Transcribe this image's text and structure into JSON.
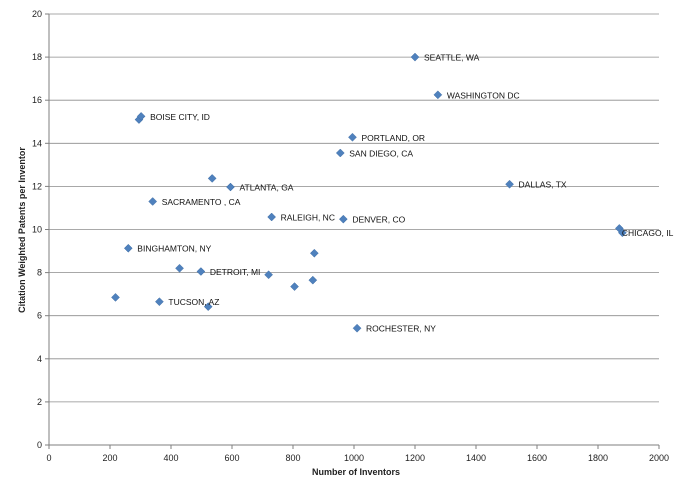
{
  "chart_data": {
    "type": "scatter",
    "title": "",
    "xlabel": "Number of Inventors",
    "ylabel": "Citation Weighted Patents per Inventor",
    "xlim": [
      0,
      2000
    ],
    "ylim": [
      0,
      20
    ],
    "xticks": [
      0,
      200,
      400,
      600,
      800,
      1000,
      1200,
      1400,
      1600,
      1800,
      2000
    ],
    "yticks": [
      0,
      2,
      4,
      6,
      8,
      10,
      12,
      14,
      16,
      18,
      20
    ],
    "grid": "horizontal",
    "legend": "none",
    "marker_color": "#4f81bd",
    "points": [
      {
        "x": 1200,
        "y": 18.0,
        "label": "SEATTLE, WA"
      },
      {
        "x": 1275,
        "y": 16.25,
        "label": "WASHINGTON  DC"
      },
      {
        "x": 295,
        "y": 15.1,
        "label": ""
      },
      {
        "x": 302,
        "y": 15.25,
        "label": "BOISE CITY, ID"
      },
      {
        "x": 995,
        "y": 14.28,
        "label": "PORTLAND, OR"
      },
      {
        "x": 955,
        "y": 13.55,
        "label": "SAN DIEGO, CA"
      },
      {
        "x": 535,
        "y": 12.37,
        "label": ""
      },
      {
        "x": 595,
        "y": 11.97,
        "label": "ATLANTA, GA"
      },
      {
        "x": 1510,
        "y": 12.1,
        "label": "DALLAS, TX"
      },
      {
        "x": 340,
        "y": 11.3,
        "label": "SACRAMENTO , CA"
      },
      {
        "x": 730,
        "y": 10.58,
        "label": "RALEIGH, NC"
      },
      {
        "x": 965,
        "y": 10.48,
        "label": "DENVER, CO"
      },
      {
        "x": 1870,
        "y": 10.05,
        "label": ""
      },
      {
        "x": 1880,
        "y": 9.85,
        "label": "CHICAGO, IL"
      },
      {
        "x": 260,
        "y": 9.13,
        "label": "BINGHAMTON, NY"
      },
      {
        "x": 870,
        "y": 8.9,
        "label": ""
      },
      {
        "x": 428,
        "y": 8.2,
        "label": ""
      },
      {
        "x": 498,
        "y": 8.05,
        "label": "DETROIT, MI"
      },
      {
        "x": 720,
        "y": 7.9,
        "label": ""
      },
      {
        "x": 865,
        "y": 7.65,
        "label": ""
      },
      {
        "x": 805,
        "y": 7.35,
        "label": ""
      },
      {
        "x": 218,
        "y": 6.85,
        "label": ""
      },
      {
        "x": 362,
        "y": 6.65,
        "label": "TUCSON, AZ"
      },
      {
        "x": 522,
        "y": 6.42,
        "label": ""
      },
      {
        "x": 1010,
        "y": 5.42,
        "label": "ROCHESTER, NY"
      }
    ]
  }
}
